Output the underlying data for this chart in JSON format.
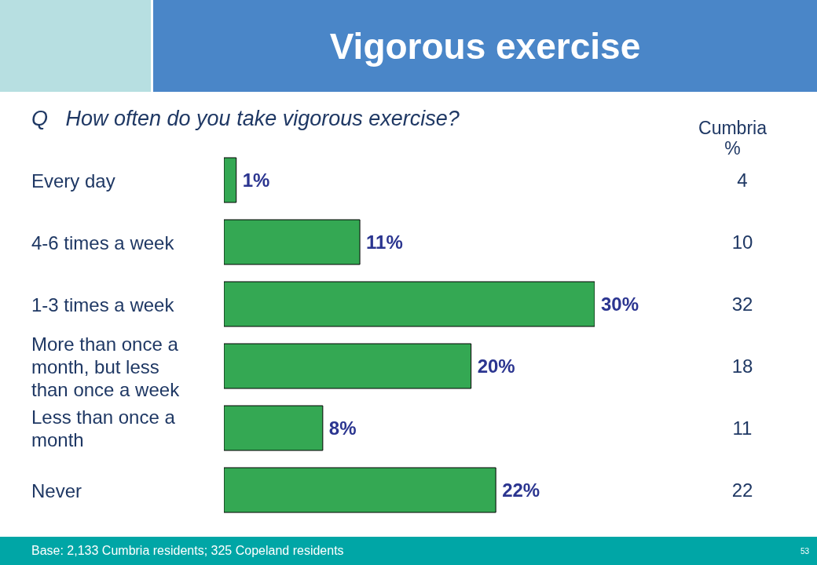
{
  "chart_data": {
    "type": "bar",
    "orientation": "horizontal",
    "title": "Vigorous exercise",
    "subtitle": "Q   How often do you take vigorous exercise?",
    "categories": [
      "Every day",
      "4-6 times a week",
      "1-3 times a week",
      "More than once a month, but less than once a week",
      "Less than once a month",
      "Never"
    ],
    "values": [
      1,
      11,
      30,
      20,
      8,
      22
    ],
    "color": "#34a853",
    "value_labels": [
      "1%",
      "11%",
      "30%",
      "20%",
      "8%",
      "22%"
    ],
    "annotations": [
      "Cumbria\n%",
      "Base: 2,133 Cumbria residents; 325 Copeland residents",
      "53",
      "4",
      "10",
      "32",
      "18",
      "11",
      "22"
    ]
  }
}
